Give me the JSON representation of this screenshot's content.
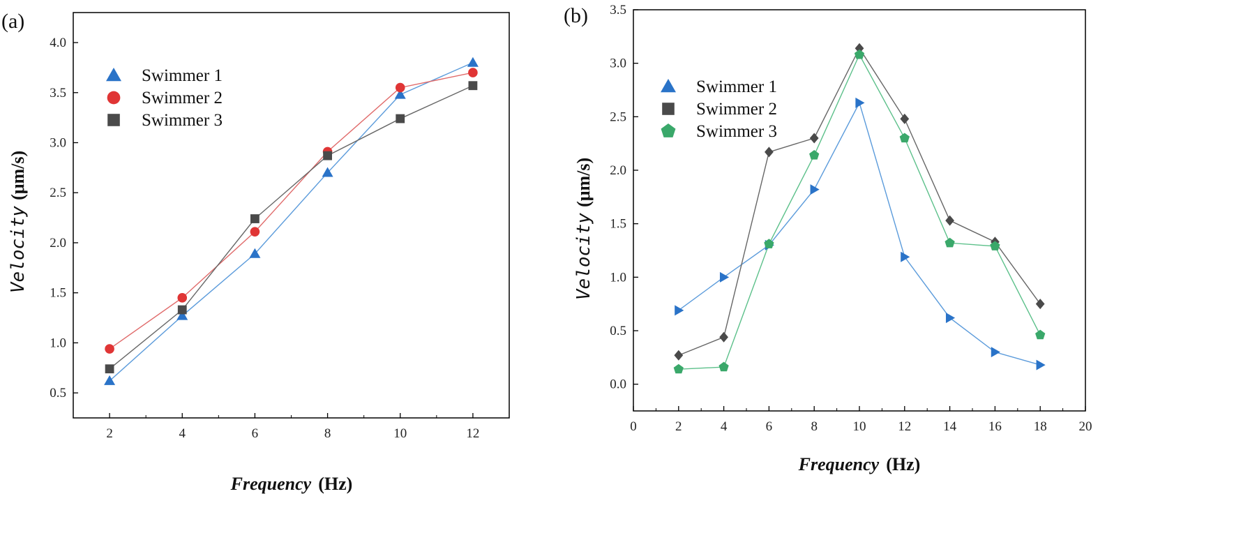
{
  "chart_data": [
    {
      "panel": "(a)",
      "type": "line",
      "xlabel": "Frequency",
      "xlabel_unit": "(Hz)",
      "ylabel": "Velocity",
      "ylabel_unit": "(μm/s)",
      "xlim": [
        1.0,
        13.0
      ],
      "ylim": [
        0.25,
        4.3
      ],
      "xticks": [
        2,
        4,
        6,
        8,
        10,
        12
      ],
      "yticks": [
        0.5,
        1.0,
        1.5,
        2.0,
        2.5,
        3.0,
        3.5,
        4.0
      ],
      "x": [
        2,
        4,
        6,
        8,
        10,
        12
      ],
      "legend_position": "upper-left",
      "series": [
        {
          "name": "Swimmer 1",
          "marker": "triangle-up",
          "color": "#2a73c8",
          "line_color": "#5b9bdb",
          "values": [
            0.62,
            1.27,
            1.89,
            2.7,
            3.48,
            3.8
          ]
        },
        {
          "name": "Swimmer 2",
          "marker": "circle",
          "color": "#e03535",
          "line_color": "#e06a6a",
          "values": [
            0.94,
            1.45,
            2.11,
            2.91,
            3.55,
            3.7
          ]
        },
        {
          "name": "Swimmer 3",
          "marker": "square",
          "color": "#4a4a4a",
          "line_color": "#666666",
          "values": [
            0.74,
            1.33,
            2.24,
            2.87,
            3.24,
            3.57
          ]
        }
      ]
    },
    {
      "panel": "(b)",
      "type": "line",
      "xlabel": "Frequency",
      "xlabel_unit": "(Hz)",
      "ylabel": "Velocity",
      "ylabel_unit": "(μm/s)",
      "xlim": [
        0,
        20
      ],
      "ylim": [
        -0.25,
        3.5
      ],
      "xticks": [
        0,
        2,
        4,
        6,
        8,
        10,
        12,
        14,
        16,
        18,
        20
      ],
      "yticks": [
        0.0,
        0.5,
        1.0,
        1.5,
        2.0,
        2.5,
        3.0,
        3.5
      ],
      "ytick_labels": [
        "0.0",
        "0.5",
        "1.0",
        "1.5",
        "2.0",
        "2.5",
        "3.0",
        "3.5"
      ],
      "x": [
        2,
        4,
        6,
        8,
        10,
        12,
        14,
        16,
        18
      ],
      "legend_position": "upper-left",
      "series": [
        {
          "name": "Swimmer 1",
          "legend_marker": "triangle-up",
          "marker": "triangle-right",
          "color": "#2a73c8",
          "line_color": "#5b9bdb",
          "values": [
            0.69,
            1.0,
            1.3,
            1.82,
            2.63,
            1.19,
            0.62,
            0.3,
            0.18
          ]
        },
        {
          "name": "Swimmer 2",
          "legend_marker": "square",
          "marker": "diamond",
          "color": "#4a4a4a",
          "line_color": "#666666",
          "values": [
            0.27,
            0.44,
            2.17,
            2.3,
            3.14,
            2.48,
            1.53,
            1.33,
            0.75
          ]
        },
        {
          "name": "Swimmer 3",
          "legend_marker": "pentagon",
          "marker": "pentagon",
          "color": "#3aa86a",
          "line_color": "#5cc08a",
          "values": [
            0.14,
            0.16,
            1.31,
            2.14,
            3.08,
            2.3,
            1.32,
            1.29,
            0.46
          ]
        }
      ]
    }
  ]
}
